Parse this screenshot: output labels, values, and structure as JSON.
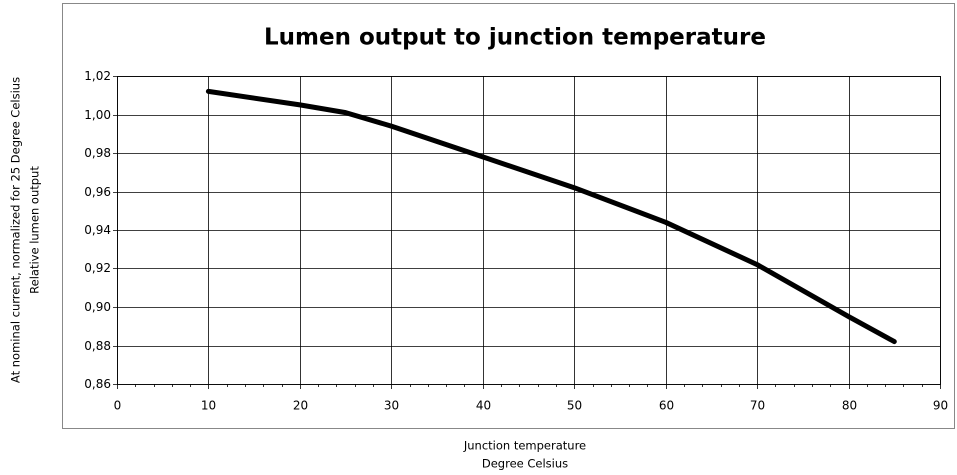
{
  "chart_data": {
    "type": "line",
    "title": "Lumen output to junction temperature",
    "y_label": [
      "Relative lumen output",
      "At nominal current, normalized for 25 Degree  Celsius"
    ],
    "x_label": [
      "Junction temperature",
      "Degree Celsius"
    ],
    "x": [
      10,
      20,
      25,
      30,
      40,
      50,
      60,
      70,
      80,
      85
    ],
    "values": [
      1.012,
      1.005,
      1.001,
      0.994,
      0.978,
      0.962,
      0.944,
      0.922,
      0.895,
      0.882
    ],
    "color": "#000000",
    "xlim": [
      0,
      90
    ],
    "xticks": [
      0,
      10,
      20,
      30,
      40,
      50,
      60,
      70,
      80,
      90
    ],
    "ylim": [
      0.86,
      1.02
    ],
    "yticks": [
      {
        "value": 0.86,
        "label": "0,86"
      },
      {
        "value": 0.88,
        "label": "0,88"
      },
      {
        "value": 0.9,
        "label": "0,90"
      },
      {
        "value": 0.92,
        "label": "0,92"
      },
      {
        "value": 0.94,
        "label": "0,94"
      },
      {
        "value": 0.96,
        "label": "0,96"
      },
      {
        "value": 0.98,
        "label": "0,98"
      },
      {
        "value": 1.0,
        "label": "1,00"
      },
      {
        "value": 1.02,
        "label": "1,02"
      }
    ],
    "grid": true
  }
}
